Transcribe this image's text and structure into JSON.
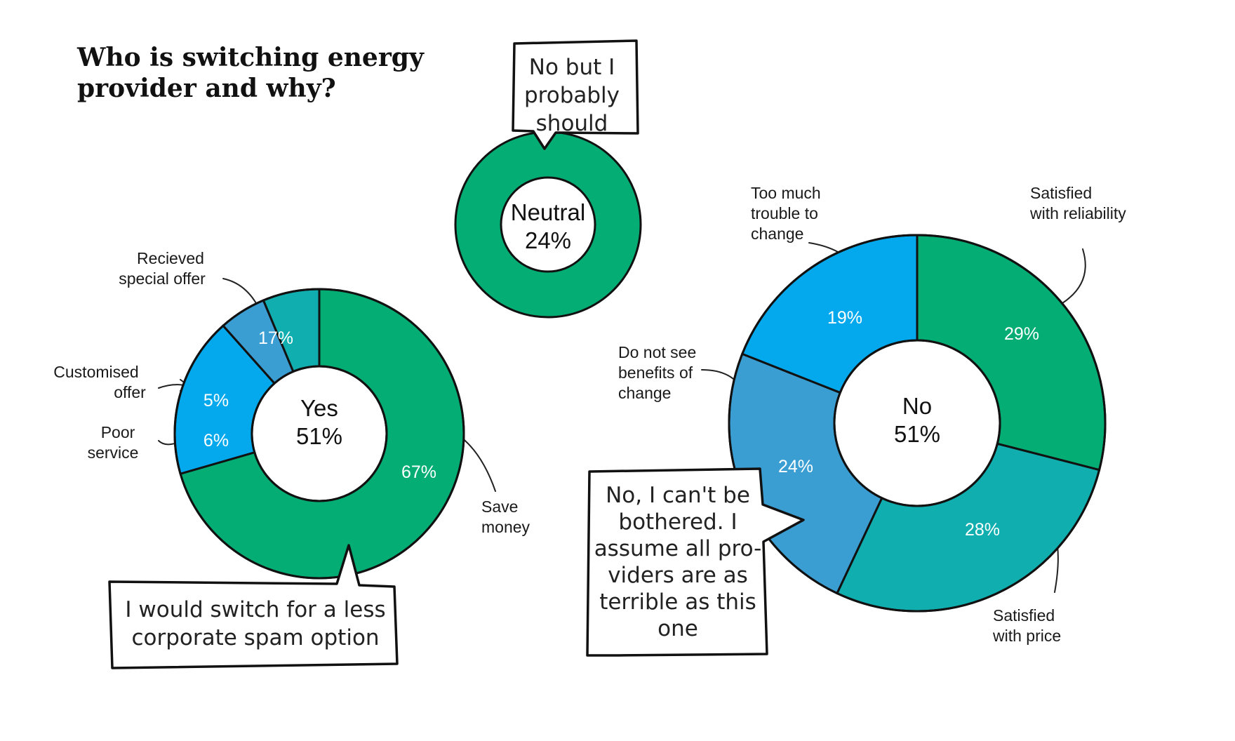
{
  "title_lines": [
    "Who is switching energy",
    "provider and why?"
  ],
  "colors": {
    "green": "#04AD74",
    "light_blue": "#03A9EC",
    "mid_blue": "#3A9ED3",
    "teal": "#10AEAE"
  },
  "chart_data": [
    {
      "type": "pie",
      "donut": true,
      "center_label": [
        "Yes",
        "51%"
      ],
      "categories": [
        "Save money",
        "Recieved special offer",
        "Customised offer",
        "Poor service"
      ],
      "values": [
        67,
        17,
        5,
        6
      ],
      "value_labels": [
        "67%",
        "17%",
        "5%",
        "6%"
      ],
      "annotation_lines": [
        [
          "Save",
          "money"
        ],
        [
          "Recieved",
          "special offer"
        ],
        [
          "Customised",
          "offer"
        ],
        [
          "Poor",
          "service"
        ]
      ]
    },
    {
      "type": "pie",
      "donut": true,
      "center_label": [
        "Neutral",
        "24%"
      ],
      "values": [
        100
      ]
    },
    {
      "type": "pie",
      "donut": true,
      "center_label": [
        "No",
        "51%"
      ],
      "categories": [
        "Satisfied with reliability",
        "Satisfied with price",
        "Do not see benefits of change",
        "Too much trouble to change"
      ],
      "values": [
        29,
        28,
        24,
        19
      ],
      "value_labels": [
        "29%",
        "28%",
        "24%",
        "19%"
      ],
      "annotation_lines": [
        [
          "Satisfied",
          "with reliability"
        ],
        [
          "Satisfied",
          "with price"
        ],
        [
          "Do not see",
          "benefits of",
          "change"
        ],
        [
          "Too much",
          "trouble to",
          "change"
        ]
      ]
    }
  ],
  "quotes": {
    "neutral": [
      "No but I",
      "probably",
      "should"
    ],
    "yes": [
      "I would switch for a less",
      "corporate spam option"
    ],
    "no": [
      "No, I can't be",
      "bothered. I",
      "assume all pro-",
      "viders are as",
      "terrible as this",
      "one"
    ]
  }
}
